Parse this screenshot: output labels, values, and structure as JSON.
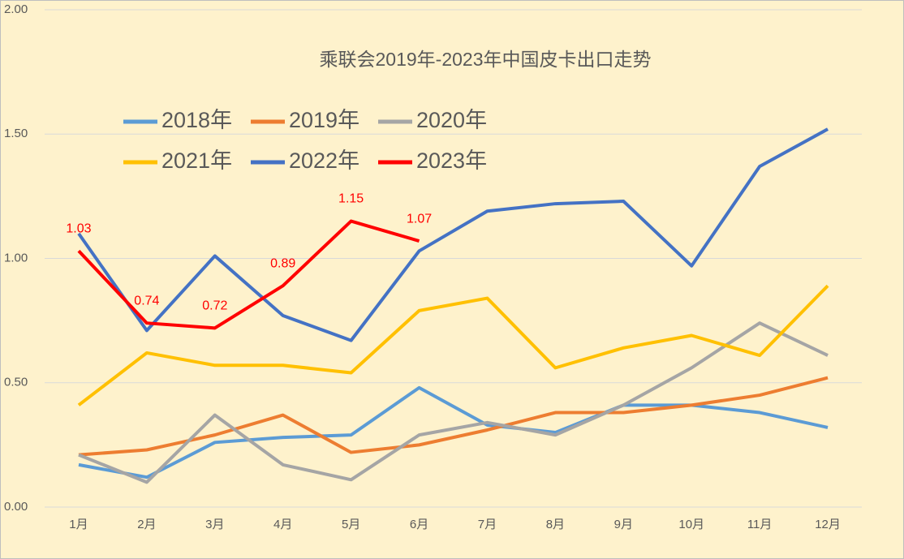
{
  "chart_data": {
    "type": "line",
    "title": "乘联会2019年-2023年中国皮卡出口走势",
    "categories": [
      "1月",
      "2月",
      "3月",
      "4月",
      "5月",
      "6月",
      "7月",
      "8月",
      "9月",
      "10月",
      "11月",
      "12月"
    ],
    "series": [
      {
        "name": "2018年",
        "color": "#5b9bd5",
        "values": [
          0.17,
          0.12,
          0.26,
          0.28,
          0.29,
          0.48,
          0.33,
          0.3,
          0.41,
          0.41,
          0.38,
          0.32
        ]
      },
      {
        "name": "2019年",
        "color": "#ed7d31",
        "values": [
          0.21,
          0.23,
          0.29,
          0.37,
          0.22,
          0.25,
          0.31,
          0.38,
          0.38,
          0.41,
          0.45,
          0.52
        ]
      },
      {
        "name": "2020年",
        "color": "#a5a5a5",
        "values": [
          0.21,
          0.1,
          0.37,
          0.17,
          0.11,
          0.29,
          0.34,
          0.29,
          0.41,
          0.56,
          0.74,
          0.61
        ]
      },
      {
        "name": "2021年",
        "color": "#ffc000",
        "values": [
          0.41,
          0.62,
          0.57,
          0.57,
          0.54,
          0.79,
          0.84,
          0.56,
          0.64,
          0.69,
          0.61,
          0.89
        ]
      },
      {
        "name": "2022年",
        "color": "#4472c4",
        "values": [
          1.1,
          0.71,
          1.01,
          0.77,
          0.67,
          1.03,
          1.19,
          1.22,
          1.23,
          0.97,
          1.37,
          1.52
        ]
      },
      {
        "name": "2023年",
        "color": "#ff0000",
        "values": [
          1.03,
          0.74,
          0.72,
          0.89,
          1.15,
          1.07,
          null,
          null,
          null,
          null,
          null,
          null
        ],
        "data_labels": true
      }
    ],
    "ylim": [
      0,
      2
    ],
    "yticks": [
      {
        "value": 0,
        "label": "0.00"
      },
      {
        "value": 0.5,
        "label": "0.50"
      },
      {
        "value": 1,
        "label": "1.00"
      },
      {
        "value": 1.5,
        "label": "1.50"
      },
      {
        "value": 2,
        "label": "2.00"
      }
    ],
    "grid": true
  }
}
